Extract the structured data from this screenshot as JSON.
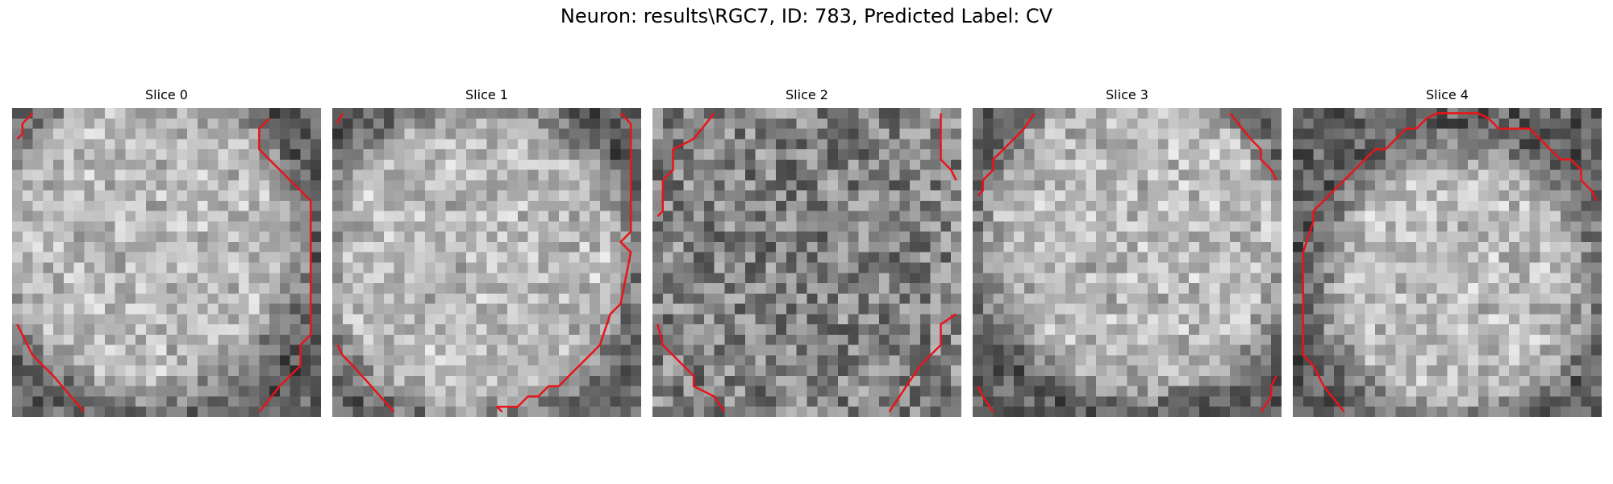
{
  "figure": {
    "title": "Neuron: results\\RGC7, ID: 783, Predicted Label: CV"
  },
  "grid_size": 30,
  "colors": {
    "contour": "#e8141a",
    "background": "#ffffff"
  },
  "slices": [
    {
      "label": "Slice 0",
      "blob": {
        "cx": 13,
        "cy": 13,
        "r": 15
      },
      "contours": [
        [
          [
            0.5,
            3
          ],
          [
            1,
            2.5
          ],
          [
            1,
            1.5
          ],
          [
            2,
            0.5
          ]
        ],
        [
          [
            0.5,
            21
          ],
          [
            1,
            22
          ],
          [
            2,
            24
          ],
          [
            4,
            26
          ],
          [
            7,
            29.5
          ]
        ],
        [
          [
            25,
            1
          ],
          [
            24,
            2
          ],
          [
            24,
            4
          ],
          [
            26,
            6
          ],
          [
            29,
            9
          ],
          [
            29,
            22
          ],
          [
            28,
            23
          ],
          [
            28,
            25
          ],
          [
            27,
            26
          ],
          [
            26,
            27
          ],
          [
            24,
            29.5
          ]
        ]
      ]
    },
    {
      "label": "Slice 1",
      "blob": {
        "cx": 14,
        "cy": 15,
        "r": 15
      },
      "contours": [
        [
          [
            0.5,
            1.5
          ],
          [
            1,
            0.5
          ]
        ],
        [
          [
            0.5,
            23
          ],
          [
            1,
            24
          ],
          [
            2,
            25
          ],
          [
            6,
            29.5
          ]
        ],
        [
          [
            28,
            0.5
          ],
          [
            29,
            1.5
          ],
          [
            29,
            12
          ],
          [
            28,
            13
          ],
          [
            29,
            14
          ],
          [
            28,
            19
          ],
          [
            27,
            20
          ],
          [
            26,
            23
          ],
          [
            25,
            24
          ],
          [
            23,
            26
          ],
          [
            22,
            27
          ],
          [
            21,
            27
          ],
          [
            20,
            28
          ],
          [
            19,
            28
          ],
          [
            18,
            29
          ],
          [
            17,
            29
          ],
          [
            16,
            29
          ],
          [
            16.5,
            29.5
          ]
        ]
      ]
    },
    {
      "label": "Slice 2",
      "blob": {
        "cx": 15,
        "cy": 15,
        "r": 13
      },
      "contours": [
        [
          [
            6,
            0.5
          ],
          [
            4,
            3
          ],
          [
            2,
            4
          ],
          [
            2,
            6
          ],
          [
            1,
            7
          ],
          [
            1,
            10
          ],
          [
            0.5,
            10.5
          ]
        ],
        [
          [
            28,
            0.5
          ],
          [
            28,
            5
          ],
          [
            29,
            6
          ],
          [
            29.5,
            7
          ]
        ],
        [
          [
            0.5,
            21
          ],
          [
            1,
            23
          ],
          [
            2,
            24
          ],
          [
            3,
            25
          ],
          [
            4,
            26
          ],
          [
            4,
            27
          ],
          [
            6,
            28
          ],
          [
            7,
            29.5
          ]
        ],
        [
          [
            29.5,
            20
          ],
          [
            28,
            21
          ],
          [
            28,
            23
          ],
          [
            26,
            25
          ],
          [
            23,
            29.5
          ]
        ]
      ]
    },
    {
      "label": "Slice 3",
      "blob": {
        "cx": 16,
        "cy": 13,
        "r": 15
      },
      "contours": [
        [
          [
            6,
            0.5
          ],
          [
            5,
            2
          ],
          [
            3,
            4
          ],
          [
            2,
            5
          ],
          [
            2,
            6
          ],
          [
            1,
            7
          ],
          [
            1,
            8
          ],
          [
            0.5,
            8.5
          ]
        ],
        [
          [
            25,
            0.5
          ],
          [
            27,
            3
          ],
          [
            28,
            4
          ],
          [
            28,
            5
          ],
          [
            29,
            6
          ],
          [
            29.5,
            7
          ]
        ],
        [
          [
            0.5,
            27
          ],
          [
            1,
            28
          ],
          [
            2,
            29.5
          ]
        ],
        [
          [
            29.5,
            26
          ],
          [
            29,
            27
          ],
          [
            29,
            28
          ],
          [
            28,
            29.5
          ]
        ]
      ]
    },
    {
      "label": "Slice 4",
      "blob": {
        "cx": 16,
        "cy": 17,
        "r": 13
      },
      "contours": [
        [
          [
            5,
            29.5
          ],
          [
            3,
            27
          ],
          [
            2,
            25
          ],
          [
            1,
            24
          ],
          [
            1,
            14
          ],
          [
            2,
            11
          ],
          [
            2,
            10
          ],
          [
            3,
            9
          ],
          [
            4,
            8
          ],
          [
            5,
            7
          ],
          [
            6,
            6
          ],
          [
            7,
            5
          ],
          [
            8,
            4
          ],
          [
            9,
            4
          ],
          [
            10,
            3
          ],
          [
            11,
            2
          ],
          [
            12,
            2
          ],
          [
            13,
            1
          ],
          [
            14,
            0.5
          ],
          [
            18,
            0.5
          ],
          [
            19,
            1
          ],
          [
            20,
            2
          ],
          [
            23,
            2
          ],
          [
            24,
            3
          ],
          [
            25,
            4
          ],
          [
            26,
            5
          ],
          [
            27,
            5
          ],
          [
            28,
            6
          ],
          [
            28,
            7
          ],
          [
            29,
            8
          ],
          [
            29.5,
            9
          ]
        ]
      ]
    }
  ]
}
